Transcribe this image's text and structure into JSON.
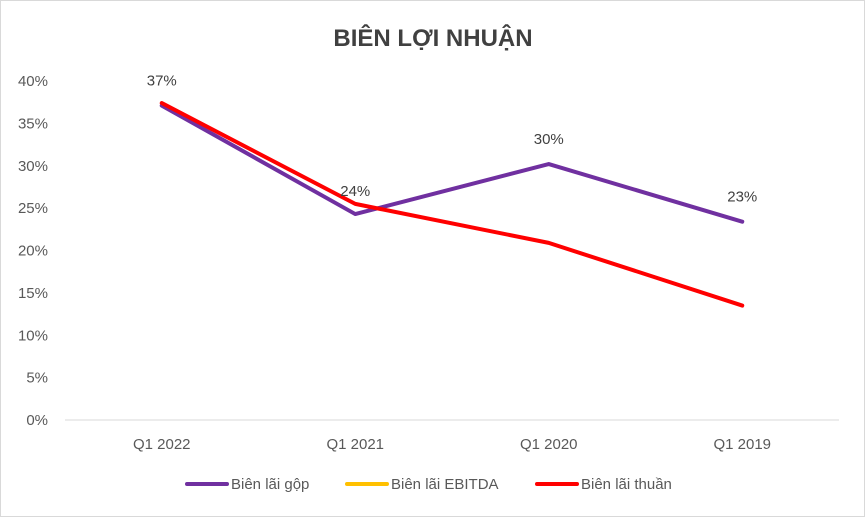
{
  "chart_data": {
    "type": "line",
    "title": "BIÊN LỢI NHUẬN",
    "xlabel": "",
    "ylabel": "",
    "categories": [
      "Q1 2022",
      "Q1 2021",
      "Q1 2020",
      "Q1 2019"
    ],
    "ylim": [
      0,
      0.4
    ],
    "yticks": [
      "0%",
      "5%",
      "10%",
      "15%",
      "20%",
      "25%",
      "30%",
      "35%",
      "40%"
    ],
    "series": [
      {
        "name": "Biên lãi gộp",
        "color": "#7030a0",
        "values": [
          0.371,
          0.243,
          0.302,
          0.234
        ],
        "data_labels": [
          "37%",
          "24%",
          "30%",
          "23%"
        ]
      },
      {
        "name": "Biên lãi EBITDA",
        "color": "#ffc000",
        "values": [
          null,
          null,
          null,
          null
        ],
        "data_labels": []
      },
      {
        "name": "Biên lãi thuần",
        "color": "#ff0000",
        "values": [
          0.374,
          0.255,
          0.209,
          0.135
        ],
        "data_labels": []
      }
    ],
    "grid": false,
    "legend": "bottom"
  }
}
